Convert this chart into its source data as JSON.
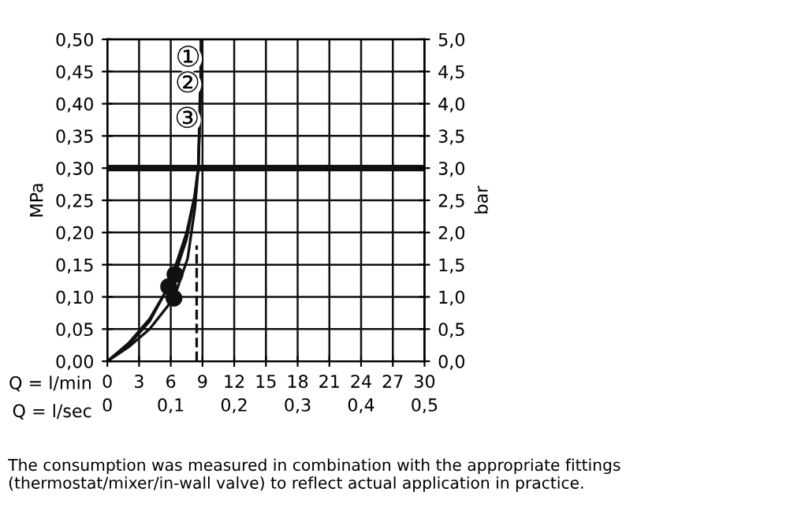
{
  "chart_data": {
    "type": "line",
    "ylabel": "MPa",
    "y2label": "bar",
    "xlabel": "Q = l/min",
    "x2label": "Q = l/sec",
    "xlim": [
      0,
      30
    ],
    "xticks": [
      0,
      3,
      6,
      9,
      12,
      15,
      18,
      21,
      24,
      27,
      30
    ],
    "x2lim": [
      0,
      0.5
    ],
    "x2ticks": [
      {
        "value": 0,
        "label": "0"
      },
      {
        "value": 0.1,
        "label": "0,1"
      },
      {
        "value": 0.2,
        "label": "0,2"
      },
      {
        "value": 0.3,
        "label": "0,3"
      },
      {
        "value": 0.4,
        "label": "0,4"
      },
      {
        "value": 0.5,
        "label": "0,5"
      }
    ],
    "ylim": [
      0,
      0.5
    ],
    "yticks": [
      {
        "value": 0,
        "label": "0,00"
      },
      {
        "value": 0.05,
        "label": "0,05"
      },
      {
        "value": 0.1,
        "label": "0,10"
      },
      {
        "value": 0.15,
        "label": "0,15"
      },
      {
        "value": 0.2,
        "label": "0,20"
      },
      {
        "value": 0.25,
        "label": "0,25"
      },
      {
        "value": 0.3,
        "label": "0,30"
      },
      {
        "value": 0.35,
        "label": "0,35"
      },
      {
        "value": 0.4,
        "label": "0,40"
      },
      {
        "value": 0.45,
        "label": "0,45"
      },
      {
        "value": 0.5,
        "label": "0,50"
      }
    ],
    "y2lim": [
      0,
      5
    ],
    "y2ticks": [
      {
        "value": 0,
        "label": "0,0"
      },
      {
        "value": 0.5,
        "label": "0,5"
      },
      {
        "value": 1,
        "label": "1,0"
      },
      {
        "value": 1.5,
        "label": "1,5"
      },
      {
        "value": 2,
        "label": "2,0"
      },
      {
        "value": 2.5,
        "label": "2,5"
      },
      {
        "value": 3,
        "label": "3,0"
      },
      {
        "value": 3.5,
        "label": "3,5"
      },
      {
        "value": 4,
        "label": "4,0"
      },
      {
        "value": 4.5,
        "label": "4,5"
      },
      {
        "value": 5,
        "label": "5,0"
      }
    ],
    "grid": true,
    "series": [
      {
        "color": "#111111",
        "x": [
          0,
          2,
          4,
          6.4,
          7.5,
          8.2,
          8.6,
          8.8,
          8.85
        ],
        "values": [
          0,
          0.025,
          0.062,
          0.135,
          0.19,
          0.25,
          0.3,
          0.4,
          0.5
        ]
      },
      {
        "color": "#111111",
        "x": [
          0,
          2,
          4,
          5.8,
          7.5,
          8.3,
          8.6,
          8.8
        ],
        "values": [
          0,
          0.028,
          0.066,
          0.116,
          0.2,
          0.26,
          0.3,
          0.44
        ]
      },
      {
        "color": "#111111",
        "x": [
          0,
          2,
          4,
          6.3,
          7.6,
          8.3,
          8.6,
          8.75
        ],
        "values": [
          0,
          0.022,
          0.05,
          0.098,
          0.16,
          0.24,
          0.3,
          0.38
        ]
      },
      {
        "type": "scatter",
        "marker": "circle",
        "color": "#111111",
        "x": [
          6.4,
          5.8,
          6.3
        ],
        "values": [
          0.135,
          0.116,
          0.098
        ]
      },
      {
        "color": "#111111",
        "line_style": "dashed",
        "x": [
          8.45,
          8.45
        ],
        "values": [
          0,
          0.18
        ]
      }
    ],
    "ref_lines": [
      {
        "axis": "y",
        "value": 0.3,
        "color": "#111111"
      }
    ],
    "annotations": [
      {
        "text": "①",
        "x": 8.85,
        "y": 0.47
      },
      {
        "text": "②",
        "x": 8.8,
        "y": 0.43
      },
      {
        "text": "③",
        "x": 8.75,
        "y": 0.375
      },
      "The consumption was measured in combination with the appropriate fittings (thermostat/mixer/in-wall valve) to reflect actual application in practice."
    ]
  }
}
